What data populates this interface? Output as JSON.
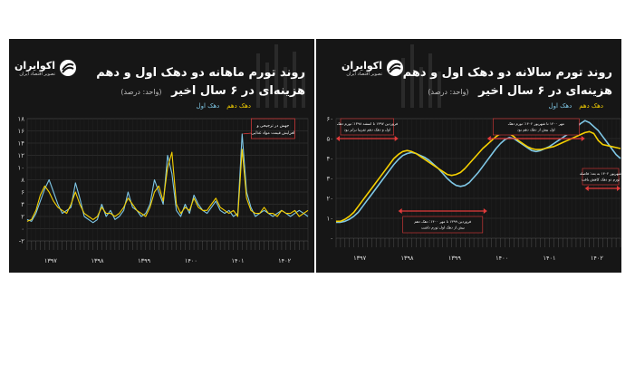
{
  "logo": {
    "brand": "اکوایران",
    "tagline": "تصویر اقتصاد ایران"
  },
  "panels": {
    "left": {
      "title_line1": "روند تورم ماهانه دو دهک اول و دهم",
      "title_line2": "هزینه‌ای در ۶ سال اخیر",
      "unit": "(واحد: درصد)"
    },
    "right": {
      "title_line1": "روند تورم سالانه دو دهک اول و دهم",
      "title_line2": "هزینه‌ای در ۶ سال اخیر",
      "unit": "(واحد: درصد)"
    }
  },
  "legend": {
    "decile10": "دهک دهم",
    "decile1": "دهک اول"
  },
  "colors": {
    "decile1": "#7fc7e6",
    "decile10": "#f5d000",
    "annotation": "#e23b3b",
    "background": "#161616"
  },
  "chart_data": [
    {
      "type": "line",
      "title": "روند تورم ماهانه دو دهک اول و دهم هزینه‌ای در ۶ سال اخیر",
      "ylim": [
        -2,
        18
      ],
      "y_ticks": [
        "-۲",
        "۰",
        "۲",
        "۴",
        "۶",
        "۸",
        "۱۰",
        "۱۲",
        "۱۴",
        "۱۶",
        "۱۸"
      ],
      "x_year_labels": [
        "۱۳۹۷",
        "۱۳۹۸",
        "۱۳۹۹",
        "۱۴۰۰",
        "۱۴۰۱",
        "۱۴۰۲"
      ],
      "grid": true,
      "annotation": "جهش در ترجیحی و افزایش قیمت مواد غذایی",
      "annotation_index": 49,
      "series": [
        {
          "name": "دهک اول",
          "color": "#7fc7e6",
          "values": [
            1.5,
            1.2,
            2.5,
            4.5,
            6.5,
            8,
            6,
            4,
            2.5,
            3,
            3.5,
            7.5,
            5,
            2,
            1.5,
            1,
            1.5,
            4,
            2,
            3,
            1.5,
            2,
            3,
            6,
            3.5,
            3,
            2,
            2.5,
            4,
            8,
            6,
            4,
            12,
            9,
            3,
            2,
            4,
            2.5,
            5.5,
            4,
            3,
            2.5,
            3.5,
            4.5,
            3,
            2.5,
            3,
            2,
            2.5,
            15.5,
            6,
            3.5,
            2,
            2.5,
            3,
            2.5,
            2,
            2.5,
            3,
            2.5,
            2,
            2.5,
            3,
            2.5,
            2
          ]
        },
        {
          "name": "دهک دهم",
          "color": "#f5d000",
          "values": [
            1.2,
            1.5,
            3,
            5.5,
            7,
            6,
            4.5,
            3.5,
            3,
            2.5,
            4,
            6,
            4,
            2.5,
            2,
            1.5,
            2,
            3.5,
            2.5,
            2.5,
            2,
            2.5,
            3.5,
            5,
            4,
            3,
            2.5,
            2,
            3.5,
            6,
            7,
            4.5,
            10,
            12.5,
            4,
            2.5,
            3.5,
            3,
            5,
            3.5,
            3,
            3,
            4,
            5,
            3.5,
            3,
            2.5,
            3,
            2,
            13,
            5,
            3,
            2.5,
            2.5,
            3.5,
            2.5,
            2.5,
            2,
            3,
            2.5,
            2.5,
            3,
            2,
            2.5,
            3
          ]
        }
      ]
    },
    {
      "type": "line",
      "title": "روند تورم سالانه دو دهک اول و دهم هزینه‌ای در ۶ سال اخیر",
      "ylim": [
        0,
        60
      ],
      "y_ticks": [
        "۰",
        "۱۰",
        "۲۰",
        "۳۰",
        "۴۰",
        "۵۰",
        "۶۰"
      ],
      "x_year_labels": [
        "۱۳۹۷",
        "۱۳۹۸",
        "۱۳۹۹",
        "۱۴۰۰",
        "۱۴۰۱",
        "۱۴۰۲"
      ],
      "grid": true,
      "annotations": [
        {
          "text": "فروردین ۱۳۹۷ تا اسفند ۱۳۹۸: تورم دهک اول و دهک دهم تقریبا برابر بود",
          "start": 0,
          "end": 14
        },
        {
          "text": "فروردین ۱۳۹۹ تا مهر ۱۴۰۰: دهک دهم بیش از دهک اول تورم داشت",
          "start": 14,
          "end": 34
        },
        {
          "text": "مهر ۱۴۰۰ تا شهریور ۱۴۰۲: تورم دهک اول بیش از دهک دهم بود",
          "start": 34,
          "end": 56
        },
        {
          "text": "شهریور ۱۴۰۲ به بعد: فاصله تورم دو دهک کاهش یافت",
          "start": 56,
          "end": 64
        }
      ],
      "series": [
        {
          "name": "دهک اول",
          "color": "#7fc7e6",
          "values": [
            8,
            8,
            8.5,
            9.5,
            11,
            13,
            16,
            19,
            22,
            25,
            28,
            31,
            34,
            37,
            39.5,
            41.5,
            42.5,
            43,
            42.5,
            41.5,
            40.5,
            39,
            37,
            35,
            32.5,
            30,
            28,
            26.5,
            26,
            26.5,
            28,
            30.5,
            33,
            36,
            39,
            42,
            45,
            47.5,
            49.5,
            50.5,
            50,
            48.5,
            47,
            45.5,
            44,
            43.5,
            44,
            45,
            46,
            47.5,
            49,
            50.5,
            52,
            53.5,
            55.5,
            57.5,
            59,
            58,
            56,
            54,
            51,
            48,
            45,
            42,
            40
          ]
        },
        {
          "name": "دهک دهم",
          "color": "#f5d000",
          "values": [
            8.5,
            8.5,
            9.5,
            11,
            13,
            16,
            19,
            22,
            25,
            28,
            31,
            34,
            37,
            40,
            42,
            43.5,
            44,
            43.5,
            42.5,
            41,
            39.5,
            38,
            36.5,
            35,
            33.5,
            32,
            31.5,
            32,
            33,
            35,
            37.5,
            40,
            42.5,
            45,
            47,
            49,
            51,
            52.5,
            53,
            52.5,
            51,
            49,
            47.5,
            46,
            45,
            44.5,
            44.5,
            45,
            45.5,
            46,
            47,
            48,
            49,
            50,
            51,
            52,
            53,
            53.5,
            52.5,
            49,
            47,
            46.5,
            46,
            45.5,
            45
          ]
        }
      ]
    }
  ]
}
